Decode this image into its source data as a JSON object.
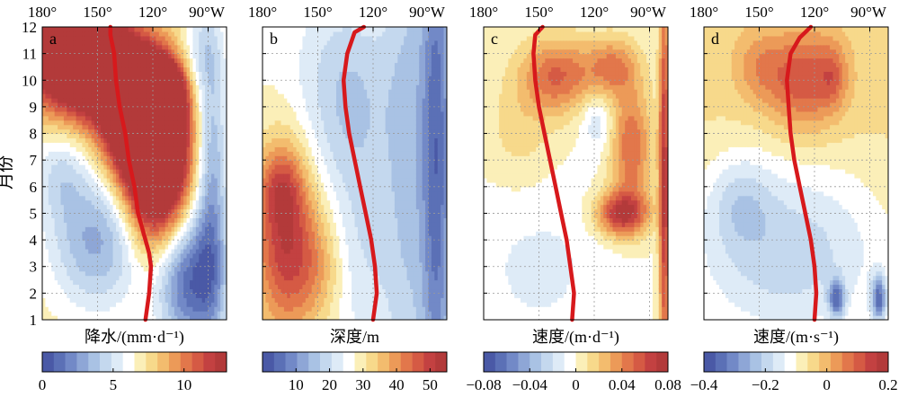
{
  "figure": {
    "y_axis_label": "月份"
  },
  "chart_data": [
    {
      "type": "heatmap",
      "panel_label": "a",
      "x_ticks": [
        "180°",
        "150°",
        "120°",
        "90°W"
      ],
      "x_tick_values": [
        180,
        150,
        120,
        90
      ],
      "xlim": [
        180,
        80
      ],
      "y_ticks": [
        "1",
        "2",
        "3",
        "4",
        "5",
        "6",
        "7",
        "8",
        "9",
        "10",
        "11",
        "12"
      ],
      "ylim": [
        1,
        12
      ],
      "colorbar_label": "降水/(mm·d⁻¹)",
      "colorbar_ticks": [
        "0",
        "5",
        "10"
      ],
      "colorbar_tick_values": [
        0,
        5,
        10
      ],
      "colorbar_range": [
        0,
        13
      ],
      "grid": true,
      "line": {
        "color": "#d7191c",
        "x": [
          143,
          143,
          141,
          140,
          138,
          135,
          133,
          130,
          128,
          126,
          124,
          122,
          121,
          122,
          124
        ],
        "y": [
          12,
          11.7,
          11,
          10,
          9,
          8,
          7,
          6,
          5,
          4.5,
          4,
          3.5,
          3,
          2,
          1
        ]
      },
      "features": [
        {
          "x": 155,
          "y": 10.5,
          "sx": 22,
          "sy": 1.3,
          "v": 11
        },
        {
          "x": 160,
          "y": 11.5,
          "sx": 12,
          "sy": 0.8,
          "v": 8
        },
        {
          "x": 118,
          "y": 6.8,
          "sx": 12,
          "sy": 2.0,
          "v": 11
        },
        {
          "x": 128,
          "y": 8.5,
          "sx": 14,
          "sy": 1.5,
          "v": 9
        },
        {
          "x": 115,
          "y": 9.5,
          "sx": 8,
          "sy": 0.8,
          "v": 9
        },
        {
          "x": 150,
          "y": 4,
          "sx": 18,
          "sy": 1.8,
          "v": -4
        },
        {
          "x": 100,
          "y": 2.5,
          "sx": 12,
          "sy": 1.8,
          "v": -6
        },
        {
          "x": 88,
          "y": 6,
          "sx": 6,
          "sy": 4,
          "v": -4
        },
        {
          "x": 95,
          "y": 11,
          "sx": 8,
          "sy": 1.2,
          "v": -2
        },
        {
          "x": 170,
          "y": 6.5,
          "sx": 10,
          "sy": 1.2,
          "v": -2
        }
      ],
      "base_value": 7,
      "value_range": [
        0,
        13
      ]
    },
    {
      "type": "heatmap",
      "panel_label": "b",
      "x_ticks": [
        "180°",
        "150°",
        "120°",
        "90°W"
      ],
      "x_tick_values": [
        180,
        150,
        120,
        90
      ],
      "xlim": [
        180,
        80
      ],
      "y_ticks": [
        "1",
        "2",
        "3",
        "4",
        "5",
        "6",
        "7",
        "8",
        "9",
        "10",
        "11",
        "12"
      ],
      "ylim": [
        1,
        12
      ],
      "colorbar_label": "深度/m",
      "colorbar_ticks": [
        "10",
        "20",
        "30",
        "40",
        "50"
      ],
      "colorbar_tick_values": [
        10,
        20,
        30,
        40,
        50
      ],
      "colorbar_range": [
        0,
        55
      ],
      "grid": true,
      "line": {
        "color": "#d7191c",
        "x": [
          125,
          130,
          134,
          136,
          135,
          133,
          130,
          127,
          124,
          121,
          119,
          118,
          120
        ],
        "y": [
          12,
          11.8,
          11,
          10,
          9,
          8,
          7,
          6,
          5,
          4,
          3,
          2,
          1
        ]
      },
      "features": [
        {
          "x": 168,
          "y": 4,
          "sx": 12,
          "sy": 2.5,
          "v": 23
        },
        {
          "x": 170,
          "y": 6,
          "sx": 8,
          "sy": 1.0,
          "v": 10
        },
        {
          "x": 150,
          "y": 3,
          "sx": 10,
          "sy": 1.5,
          "v": 8
        },
        {
          "x": 85,
          "y": 7,
          "sx": 6,
          "sy": 8,
          "v": -20
        },
        {
          "x": 100,
          "y": 7,
          "sx": 10,
          "sy": 8,
          "v": -10
        },
        {
          "x": 135,
          "y": 9.5,
          "sx": 18,
          "sy": 2.5,
          "v": -10
        },
        {
          "x": 125,
          "y": 4,
          "sx": 12,
          "sy": 3,
          "v": -6
        }
      ],
      "base_value": 27,
      "value_range": [
        0,
        55
      ]
    },
    {
      "type": "heatmap",
      "panel_label": "c",
      "x_ticks": [
        "180°",
        "150°",
        "120°",
        "90°W"
      ],
      "x_tick_values": [
        180,
        150,
        120,
        90
      ],
      "xlim": [
        180,
        80
      ],
      "y_ticks": [
        "1",
        "2",
        "3",
        "4",
        "5",
        "6",
        "7",
        "8",
        "9",
        "10",
        "11",
        "12"
      ],
      "ylim": [
        1,
        12
      ],
      "colorbar_label": "速度/(m·d⁻¹)",
      "colorbar_ticks": [
        "−0.08",
        "−0.04",
        "0",
        "0.04",
        "0.08"
      ],
      "colorbar_tick_values": [
        -0.08,
        -0.04,
        0,
        0.04,
        0.08
      ],
      "colorbar_range": [
        -0.08,
        0.08
      ],
      "grid": true,
      "line": {
        "color": "#d7191c",
        "x": [
          148,
          152,
          153,
          152,
          150,
          147,
          144,
          141,
          138,
          135,
          133,
          131,
          132
        ],
        "y": [
          12,
          11.7,
          11,
          10,
          9,
          8,
          7,
          6,
          5,
          4,
          3,
          2,
          1
        ]
      },
      "features": [
        {
          "x": 140,
          "y": 10.2,
          "sx": 14,
          "sy": 1.0,
          "v": 0.05
        },
        {
          "x": 110,
          "y": 10.5,
          "sx": 10,
          "sy": 0.8,
          "v": 0.04
        },
        {
          "x": 100,
          "y": 7.5,
          "sx": 8,
          "sy": 1.6,
          "v": 0.05
        },
        {
          "x": 105,
          "y": 5,
          "sx": 10,
          "sy": 0.6,
          "v": 0.07
        },
        {
          "x": 82,
          "y": 6,
          "sx": 2,
          "sy": 6,
          "v": 0.07
        },
        {
          "x": 160,
          "y": 8,
          "sx": 14,
          "sy": 1.5,
          "v": 0.015
        },
        {
          "x": 118,
          "y": 8.5,
          "sx": 6,
          "sy": 0.8,
          "v": -0.02
        },
        {
          "x": 150,
          "y": 3,
          "sx": 30,
          "sy": 2.5,
          "v": -0.012
        }
      ],
      "base_value": 0,
      "value_range": [
        -0.08,
        0.08
      ]
    },
    {
      "type": "heatmap",
      "panel_label": "d",
      "x_ticks": [
        "180°",
        "150°",
        "120°",
        "90°W"
      ],
      "x_tick_values": [
        180,
        150,
        120,
        90
      ],
      "xlim": [
        180,
        80
      ],
      "y_ticks": [
        "1",
        "2",
        "3",
        "4",
        "5",
        "6",
        "7",
        "8",
        "9",
        "10",
        "11",
        "12"
      ],
      "ylim": [
        1,
        12
      ],
      "colorbar_label": "速度/(m·s⁻¹)",
      "colorbar_ticks": [
        "−0.4",
        "−0.2",
        "0",
        "0.2"
      ],
      "colorbar_tick_values": [
        -0.4,
        -0.2,
        0,
        0.2
      ],
      "colorbar_range": [
        -0.4,
        0.2
      ],
      "grid": true,
      "line": {
        "color": "#d7191c",
        "x": [
          122,
          128,
          133,
          135,
          134,
          133,
          131,
          128,
          125,
          122,
          120,
          119,
          120
        ],
        "y": [
          12,
          11.6,
          11,
          10,
          9,
          8,
          7,
          6,
          5,
          4,
          3,
          2,
          1
        ]
      },
      "features": [
        {
          "x": 125,
          "y": 10,
          "sx": 14,
          "sy": 1.3,
          "v": 0.17
        },
        {
          "x": 110,
          "y": 10.2,
          "sx": 5,
          "sy": 0.8,
          "v": 0.08
        },
        {
          "x": 150,
          "y": 10.5,
          "sx": 10,
          "sy": 1.0,
          "v": 0.08
        },
        {
          "x": 135,
          "y": 3.5,
          "sx": 40,
          "sy": 2.5,
          "v": -0.15
        },
        {
          "x": 160,
          "y": 5.5,
          "sx": 12,
          "sy": 1.2,
          "v": -0.08
        },
        {
          "x": 108,
          "y": 1.8,
          "sx": 3,
          "sy": 0.5,
          "v": -0.22
        },
        {
          "x": 85,
          "y": 1.8,
          "sx": 3,
          "sy": 0.6,
          "v": -0.25
        }
      ],
      "base_value": -0.05,
      "value_range": [
        -0.4,
        0.2
      ]
    }
  ]
}
